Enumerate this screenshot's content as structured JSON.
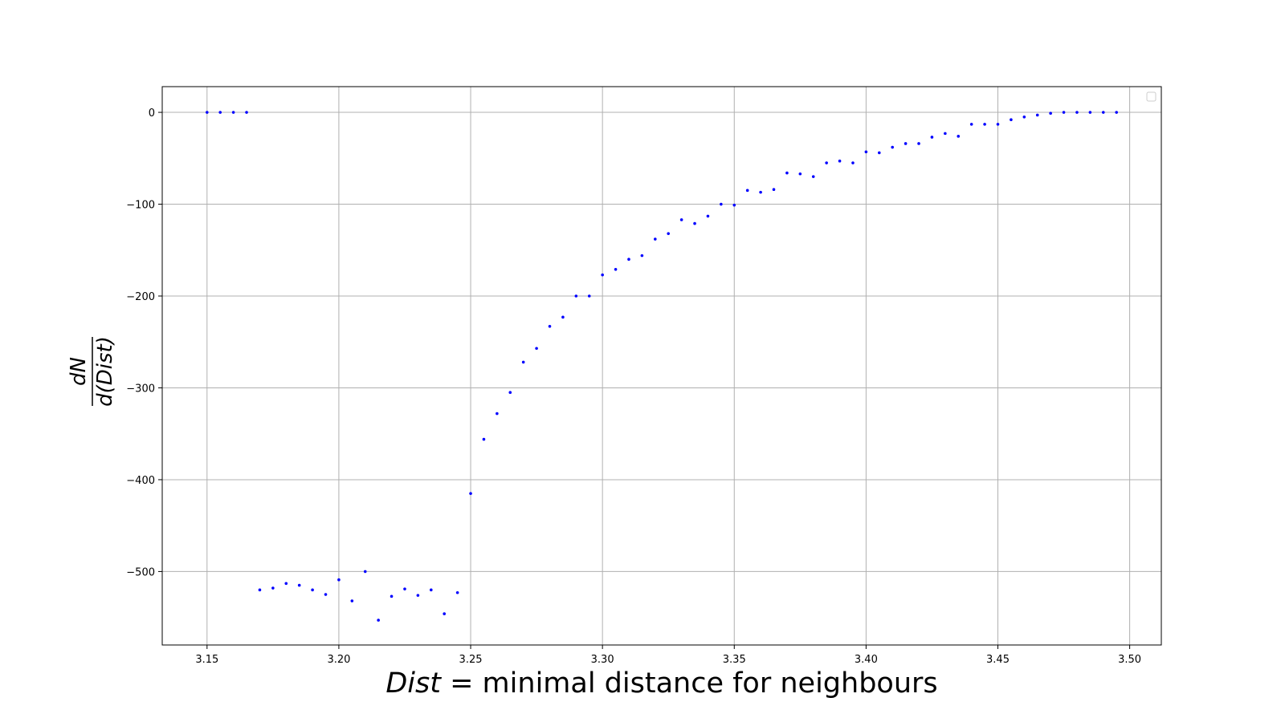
{
  "chart_data": {
    "type": "scatter",
    "title": "",
    "xlabel_italic": "Dist",
    "xlabel_rest": " = minimal distance for neighbours",
    "ylabel_numerator": "dN",
    "ylabel_denominator": "d(Dist)",
    "xlim": [
      3.133,
      3.512
    ],
    "ylim": [
      -580,
      28
    ],
    "xticks": [
      3.15,
      3.2,
      3.25,
      3.3,
      3.35,
      3.4,
      3.45,
      3.5
    ],
    "xtick_labels": [
      "3.15",
      "3.20",
      "3.25",
      "3.30",
      "3.35",
      "3.40",
      "3.45",
      "3.50"
    ],
    "yticks": [
      0,
      -100,
      -200,
      -300,
      -400,
      -500
    ],
    "ytick_labels": [
      "0",
      "−100",
      "−200",
      "−300",
      "−400",
      "−500"
    ],
    "grid": true,
    "legend": "top-right (empty)",
    "marker_color": "#0000ff",
    "series": [
      {
        "x": [
          3.15,
          3.155,
          3.16,
          3.165,
          3.17,
          3.175,
          3.18,
          3.185,
          3.19,
          3.195,
          3.2,
          3.205,
          3.21,
          3.215,
          3.22,
          3.225,
          3.23,
          3.235,
          3.24,
          3.245,
          3.25,
          3.255,
          3.26,
          3.265,
          3.27,
          3.275,
          3.28,
          3.285,
          3.29,
          3.295,
          3.3,
          3.305,
          3.31,
          3.315,
          3.32,
          3.325,
          3.33,
          3.335,
          3.34,
          3.345,
          3.35,
          3.355,
          3.36,
          3.365,
          3.37,
          3.375,
          3.38,
          3.385,
          3.39,
          3.395,
          3.4,
          3.405,
          3.41,
          3.415,
          3.42,
          3.425,
          3.43,
          3.435,
          3.44,
          3.445,
          3.45,
          3.455,
          3.46,
          3.465,
          3.47,
          3.475,
          3.48,
          3.485,
          3.49,
          3.495
        ],
        "y": [
          0,
          0,
          0,
          0,
          -520,
          -518,
          -513,
          -515,
          -520,
          -525,
          -509,
          -532,
          -500,
          -553,
          -527,
          -519,
          -526,
          -520,
          -546,
          -523,
          -415,
          -356,
          -328,
          -305,
          -272,
          -257,
          -233,
          -223,
          -200,
          -200,
          -177,
          -171,
          -160,
          -156,
          -138,
          -132,
          -117,
          -121,
          -113,
          -100,
          -101,
          -85,
          -87,
          -84,
          -66,
          -67,
          -70,
          -55,
          -53,
          -55,
          -43,
          -44,
          -38,
          -34,
          -34,
          -27,
          -23,
          -26,
          -13,
          -13,
          -13,
          -8,
          -5,
          -3,
          -1,
          0,
          0,
          0,
          0,
          0
        ]
      }
    ]
  }
}
